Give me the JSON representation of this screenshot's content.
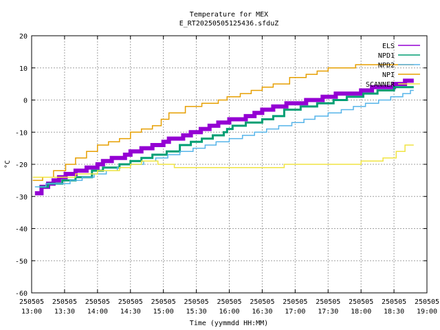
{
  "chart_data": {
    "type": "line",
    "title": "Temperature for MEX",
    "subtitle": "E_RT20250505125436.sfduZ",
    "xlabel": "Time (yymmdd HH:MM)",
    "ylabel": "°C",
    "xlim_minutes": [
      780,
      1140
    ],
    "ylim": [
      -60,
      20
    ],
    "grid": true,
    "legend_position": "top-right",
    "x_ticks": [
      {
        "date": "250505",
        "time": "13:00",
        "minutes": 780
      },
      {
        "date": "250505",
        "time": "13:30",
        "minutes": 810
      },
      {
        "date": "250505",
        "time": "14:00",
        "minutes": 840
      },
      {
        "date": "250505",
        "time": "14:30",
        "minutes": 870
      },
      {
        "date": "250505",
        "time": "15:00",
        "minutes": 900
      },
      {
        "date": "250505",
        "time": "15:30",
        "minutes": 930
      },
      {
        "date": "250505",
        "time": "16:00",
        "minutes": 960
      },
      {
        "date": "250505",
        "time": "16:30",
        "minutes": 990
      },
      {
        "date": "250505",
        "time": "17:00",
        "minutes": 1020
      },
      {
        "date": "250505",
        "time": "17:30",
        "minutes": 1050
      },
      {
        "date": "250505",
        "time": "18:00",
        "minutes": 1080
      },
      {
        "date": "250505",
        "time": "18:30",
        "minutes": 1110
      },
      {
        "date": "250505",
        "time": "19:00",
        "minutes": 1140
      }
    ],
    "y_ticks": [
      20,
      10,
      0,
      -10,
      -20,
      -30,
      -40,
      -50,
      -60
    ],
    "series": [
      {
        "name": "ELS",
        "color": "#9400d3",
        "stroke_width": 6,
        "points": [
          [
            783,
            -29
          ],
          [
            789,
            -29
          ],
          [
            789,
            -27
          ],
          [
            795,
            -27
          ],
          [
            795,
            -26
          ],
          [
            800,
            -26
          ],
          [
            800,
            -25
          ],
          [
            805,
            -25
          ],
          [
            805,
            -24
          ],
          [
            811,
            -24
          ],
          [
            811,
            -23
          ],
          [
            820,
            -23
          ],
          [
            820,
            -22
          ],
          [
            830,
            -22
          ],
          [
            830,
            -21
          ],
          [
            840,
            -21
          ],
          [
            840,
            -20
          ],
          [
            845,
            -20
          ],
          [
            845,
            -19
          ],
          [
            853,
            -19
          ],
          [
            853,
            -18
          ],
          [
            865,
            -18
          ],
          [
            865,
            -17
          ],
          [
            870,
            -17
          ],
          [
            870,
            -16
          ],
          [
            880,
            -16
          ],
          [
            880,
            -15
          ],
          [
            890,
            -15
          ],
          [
            890,
            -14
          ],
          [
            900,
            -14
          ],
          [
            900,
            -13
          ],
          [
            905,
            -13
          ],
          [
            905,
            -12
          ],
          [
            918,
            -12
          ],
          [
            918,
            -11
          ],
          [
            925,
            -11
          ],
          [
            925,
            -10
          ],
          [
            934,
            -10
          ],
          [
            934,
            -9
          ],
          [
            942,
            -9
          ],
          [
            942,
            -8
          ],
          [
            950,
            -8
          ],
          [
            950,
            -7
          ],
          [
            960,
            -7
          ],
          [
            960,
            -6
          ],
          [
            975,
            -6
          ],
          [
            975,
            -5
          ],
          [
            983,
            -5
          ],
          [
            983,
            -4
          ],
          [
            990,
            -4
          ],
          [
            990,
            -3
          ],
          [
            1000,
            -3
          ],
          [
            1000,
            -2
          ],
          [
            1012,
            -2
          ],
          [
            1012,
            -1
          ],
          [
            1030,
            -1
          ],
          [
            1030,
            0
          ],
          [
            1045,
            0
          ],
          [
            1045,
            1
          ],
          [
            1057,
            1
          ],
          [
            1057,
            2
          ],
          [
            1080,
            2
          ],
          [
            1080,
            3
          ],
          [
            1090,
            3
          ],
          [
            1090,
            4
          ],
          [
            1110,
            4
          ],
          [
            1110,
            5
          ],
          [
            1120,
            5
          ],
          [
            1120,
            6
          ],
          [
            1128,
            6
          ]
        ]
      },
      {
        "name": "NPD1",
        "color": "#009e73",
        "stroke_width": 3,
        "points": [
          [
            787,
            -27
          ],
          [
            795,
            -27
          ],
          [
            795,
            -26
          ],
          [
            808,
            -26
          ],
          [
            808,
            -25
          ],
          [
            820,
            -25
          ],
          [
            820,
            -24
          ],
          [
            835,
            -24
          ],
          [
            835,
            -22
          ],
          [
            845,
            -22
          ],
          [
            845,
            -21
          ],
          [
            860,
            -21
          ],
          [
            860,
            -20
          ],
          [
            870,
            -20
          ],
          [
            870,
            -19
          ],
          [
            880,
            -19
          ],
          [
            880,
            -18
          ],
          [
            890,
            -18
          ],
          [
            890,
            -17
          ],
          [
            903,
            -17
          ],
          [
            903,
            -16
          ],
          [
            915,
            -16
          ],
          [
            915,
            -14
          ],
          [
            925,
            -14
          ],
          [
            925,
            -13
          ],
          [
            935,
            -13
          ],
          [
            935,
            -12
          ],
          [
            945,
            -12
          ],
          [
            945,
            -11
          ],
          [
            955,
            -11
          ],
          [
            955,
            -10
          ],
          [
            958,
            -10
          ],
          [
            958,
            -9
          ],
          [
            963,
            -9
          ],
          [
            963,
            -8
          ],
          [
            975,
            -8
          ],
          [
            975,
            -7
          ],
          [
            990,
            -7
          ],
          [
            990,
            -6
          ],
          [
            1000,
            -6
          ],
          [
            1000,
            -5
          ],
          [
            1010,
            -5
          ],
          [
            1010,
            -3
          ],
          [
            1025,
            -3
          ],
          [
            1025,
            -2
          ],
          [
            1040,
            -2
          ],
          [
            1040,
            -1
          ],
          [
            1055,
            -1
          ],
          [
            1055,
            0
          ],
          [
            1067,
            0
          ],
          [
            1067,
            1
          ],
          [
            1082,
            1
          ],
          [
            1082,
            2
          ],
          [
            1095,
            2
          ],
          [
            1095,
            3
          ],
          [
            1110,
            3
          ],
          [
            1110,
            4
          ],
          [
            1128,
            4
          ]
        ]
      },
      {
        "name": "NPD2",
        "color": "#56b4e9",
        "stroke_width": 1.5,
        "points": [
          [
            783,
            -27
          ],
          [
            793,
            -27
          ],
          [
            793,
            -26
          ],
          [
            815,
            -26
          ],
          [
            815,
            -25
          ],
          [
            826,
            -25
          ],
          [
            826,
            -24
          ],
          [
            837,
            -24
          ],
          [
            837,
            -23
          ],
          [
            848,
            -23
          ],
          [
            848,
            -22
          ],
          [
            858,
            -22
          ],
          [
            858,
            -21
          ],
          [
            870,
            -21
          ],
          [
            870,
            -20
          ],
          [
            882,
            -20
          ],
          [
            882,
            -19
          ],
          [
            893,
            -19
          ],
          [
            893,
            -18
          ],
          [
            904,
            -18
          ],
          [
            904,
            -17
          ],
          [
            915,
            -17
          ],
          [
            915,
            -16
          ],
          [
            927,
            -16
          ],
          [
            927,
            -15
          ],
          [
            938,
            -15
          ],
          [
            938,
            -14
          ],
          [
            948,
            -14
          ],
          [
            948,
            -13
          ],
          [
            960,
            -13
          ],
          [
            960,
            -12
          ],
          [
            972,
            -12
          ],
          [
            972,
            -11
          ],
          [
            983,
            -11
          ],
          [
            983,
            -10
          ],
          [
            994,
            -10
          ],
          [
            994,
            -9
          ],
          [
            1005,
            -9
          ],
          [
            1005,
            -8
          ],
          [
            1017,
            -8
          ],
          [
            1017,
            -7
          ],
          [
            1028,
            -7
          ],
          [
            1028,
            -6
          ],
          [
            1038,
            -6
          ],
          [
            1038,
            -5
          ],
          [
            1050,
            -5
          ],
          [
            1050,
            -4
          ],
          [
            1062,
            -4
          ],
          [
            1062,
            -3
          ],
          [
            1073,
            -3
          ],
          [
            1073,
            -2
          ],
          [
            1084,
            -2
          ],
          [
            1084,
            -1
          ],
          [
            1096,
            -1
          ],
          [
            1096,
            0
          ],
          [
            1107,
            0
          ],
          [
            1107,
            1
          ],
          [
            1118,
            1
          ],
          [
            1118,
            2
          ],
          [
            1125,
            2
          ],
          [
            1125,
            3
          ],
          [
            1128,
            3
          ]
        ]
      },
      {
        "name": "NPI",
        "color": "#e69f00",
        "stroke_width": 1.5,
        "points": [
          [
            781,
            -25
          ],
          [
            790,
            -25
          ],
          [
            790,
            -24
          ],
          [
            800,
            -24
          ],
          [
            800,
            -22
          ],
          [
            811,
            -22
          ],
          [
            811,
            -20
          ],
          [
            820,
            -20
          ],
          [
            820,
            -18
          ],
          [
            830,
            -18
          ],
          [
            830,
            -16
          ],
          [
            840,
            -16
          ],
          [
            840,
            -14
          ],
          [
            850,
            -14
          ],
          [
            850,
            -13
          ],
          [
            860,
            -13
          ],
          [
            860,
            -12
          ],
          [
            870,
            -12
          ],
          [
            870,
            -10
          ],
          [
            880,
            -10
          ],
          [
            880,
            -9
          ],
          [
            890,
            -9
          ],
          [
            890,
            -8
          ],
          [
            898,
            -8
          ],
          [
            898,
            -6
          ],
          [
            905,
            -6
          ],
          [
            905,
            -4
          ],
          [
            920,
            -4
          ],
          [
            920,
            -2
          ],
          [
            935,
            -2
          ],
          [
            935,
            -1
          ],
          [
            950,
            -1
          ],
          [
            950,
            0
          ],
          [
            958,
            0
          ],
          [
            958,
            1
          ],
          [
            970,
            1
          ],
          [
            970,
            2
          ],
          [
            980,
            2
          ],
          [
            980,
            3
          ],
          [
            990,
            3
          ],
          [
            990,
            4
          ],
          [
            1000,
            4
          ],
          [
            1000,
            5
          ],
          [
            1015,
            5
          ],
          [
            1015,
            7
          ],
          [
            1030,
            7
          ],
          [
            1030,
            8
          ],
          [
            1040,
            8
          ],
          [
            1040,
            9
          ],
          [
            1050,
            9
          ],
          [
            1050,
            10
          ],
          [
            1075,
            10
          ],
          [
            1075,
            11
          ],
          [
            1128,
            11
          ]
        ]
      },
      {
        "name": "SCANNER",
        "color": "#f0e442",
        "stroke_width": 1.5,
        "points": [
          [
            781,
            -24
          ],
          [
            820,
            -24
          ],
          [
            820,
            -23
          ],
          [
            840,
            -23
          ],
          [
            840,
            -22
          ],
          [
            860,
            -22
          ],
          [
            860,
            -21
          ],
          [
            870,
            -21
          ],
          [
            870,
            -20
          ],
          [
            880,
            -20
          ],
          [
            880,
            -19
          ],
          [
            895,
            -19
          ],
          [
            895,
            -20
          ],
          [
            910,
            -20
          ],
          [
            910,
            -21
          ],
          [
            1010,
            -21
          ],
          [
            1010,
            -20
          ],
          [
            1080,
            -20
          ],
          [
            1080,
            -19
          ],
          [
            1100,
            -19
          ],
          [
            1100,
            -18
          ],
          [
            1112,
            -18
          ],
          [
            1112,
            -16
          ],
          [
            1120,
            -16
          ],
          [
            1120,
            -14
          ],
          [
            1128,
            -14
          ]
        ]
      }
    ]
  }
}
